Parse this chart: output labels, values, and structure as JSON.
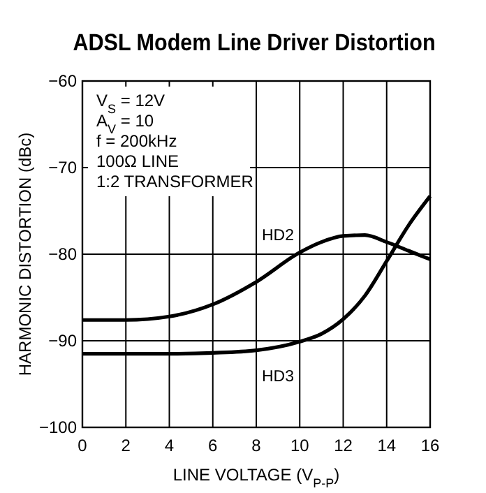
{
  "chart_data": {
    "type": "line",
    "title": "ADSL Modem Line Driver Distortion",
    "xlabel": "LINE VOLTAGE (V$_{P-P}$)",
    "ylabel": "HARMONIC DISTORTION (dBc)",
    "x": [
      0,
      2,
      4,
      6,
      8,
      10,
      11,
      12,
      13,
      14,
      15,
      16
    ],
    "series": [
      {
        "name": "HD2",
        "color": "#000000",
        "values": [
          -87.6,
          -87.6,
          -87.2,
          -85.8,
          -83.2,
          -79.8,
          -78.6,
          -77.9,
          -77.8,
          -78.6,
          -79.6,
          -80.6
        ]
      },
      {
        "name": "HD3",
        "color": "#000000",
        "values": [
          -91.5,
          -91.5,
          -91.5,
          -91.4,
          -91.1,
          -90.1,
          -89.2,
          -87.5,
          -84.8,
          -80.8,
          -76.7,
          -73.3
        ]
      }
    ],
    "xlim": [
      0,
      16
    ],
    "xticks": [
      0,
      2,
      4,
      6,
      8,
      10,
      12,
      14,
      16
    ],
    "ylim": [
      -100,
      -60
    ],
    "yticks": [
      {
        "value": -100,
        "label": "−100"
      },
      {
        "value": -90,
        "label": "−90"
      },
      {
        "value": -80,
        "label": "−80"
      },
      {
        "value": -70,
        "label": "−70"
      },
      {
        "value": -60,
        "label": "−60"
      }
    ],
    "grid": true,
    "marker": "none",
    "line_style": "solid",
    "annotations": [
      "V$_{S}$ = 12V",
      "A$_{V}$ = 10",
      "f = 200kHz",
      "100Ω LINE",
      "1:2 TRANSFORMER"
    ]
  }
}
